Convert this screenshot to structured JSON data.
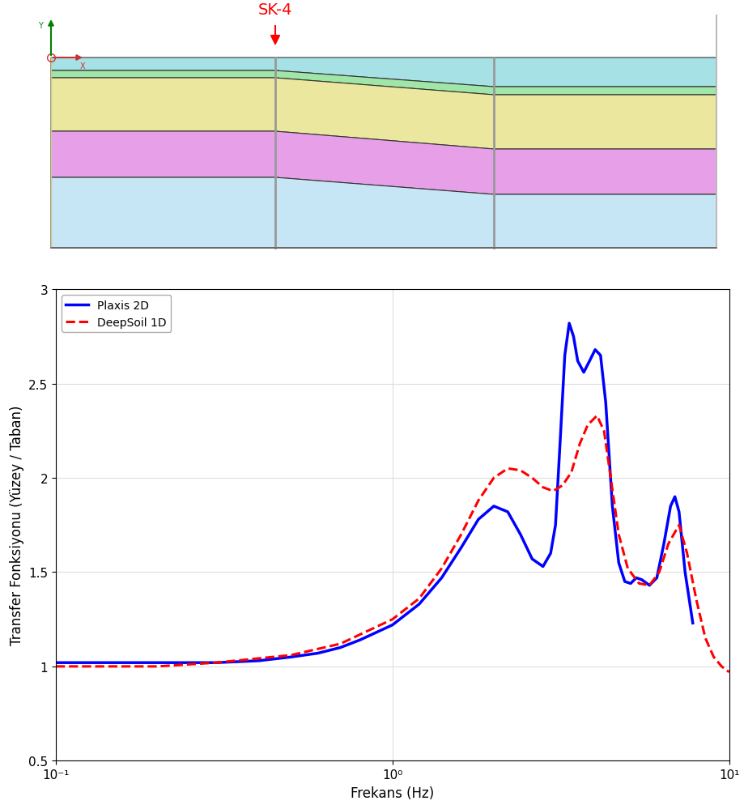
{
  "chart_data": {
    "type": "line",
    "x_label": "Frekans (Hz)",
    "y_label": "Transfer Fonksiyonu (Yüzey / Taban)",
    "log": "x",
    "grid": true,
    "legend": "upper left",
    "xlim": [
      0.1,
      10
    ],
    "xticks": [
      {
        "value": 0.1,
        "label": "10⁻¹"
      },
      {
        "value": 1,
        "label": "10⁰"
      },
      {
        "value": 10,
        "label": "10¹"
      }
    ],
    "ylim": [
      0.5,
      3
    ],
    "yticks": [
      0.5,
      1,
      1.5,
      2,
      2.5,
      3
    ],
    "series": [
      {
        "name": "Plaxis 2D",
        "color": "#0000ff",
        "line_style": "solid",
        "x": [
          0.1,
          0.2,
          0.3,
          0.4,
          0.5,
          0.6,
          0.7,
          0.8,
          1.0,
          1.2,
          1.4,
          1.6,
          1.8,
          2.0,
          2.2,
          2.4,
          2.6,
          2.8,
          2.95,
          3.05,
          3.15,
          3.25,
          3.35,
          3.45,
          3.55,
          3.7,
          3.85,
          4.0,
          4.15,
          4.3,
          4.5,
          4.7,
          4.9,
          5.1,
          5.3,
          5.5,
          5.8,
          6.1,
          6.4,
          6.7,
          6.9,
          7.1,
          7.4,
          7.8
        ],
        "values": [
          1.02,
          1.02,
          1.02,
          1.03,
          1.05,
          1.07,
          1.1,
          1.14,
          1.22,
          1.33,
          1.47,
          1.63,
          1.78,
          1.85,
          1.82,
          1.7,
          1.57,
          1.53,
          1.6,
          1.75,
          2.2,
          2.65,
          2.82,
          2.75,
          2.62,
          2.56,
          2.62,
          2.68,
          2.65,
          2.4,
          1.85,
          1.55,
          1.45,
          1.44,
          1.47,
          1.46,
          1.43,
          1.47,
          1.65,
          1.85,
          1.9,
          1.82,
          1.5,
          1.23
        ]
      },
      {
        "name": "DeepSoil 1D",
        "color": "#ff0000",
        "line_style": "dashed",
        "x": [
          0.1,
          0.2,
          0.3,
          0.5,
          0.7,
          1.0,
          1.2,
          1.4,
          1.6,
          1.8,
          2.0,
          2.2,
          2.4,
          2.6,
          2.8,
          3.0,
          3.2,
          3.4,
          3.6,
          3.8,
          4.05,
          4.25,
          4.45,
          4.7,
          5.0,
          5.4,
          5.8,
          6.2,
          6.6,
          7.1,
          7.5,
          8.0,
          8.5,
          9.0,
          9.5,
          10
        ],
        "values": [
          1.0,
          1.0,
          1.02,
          1.06,
          1.12,
          1.25,
          1.36,
          1.52,
          1.7,
          1.88,
          2.0,
          2.05,
          2.04,
          2.0,
          1.95,
          1.93,
          1.96,
          2.03,
          2.18,
          2.28,
          2.33,
          2.25,
          2.0,
          1.7,
          1.52,
          1.44,
          1.43,
          1.5,
          1.65,
          1.75,
          1.6,
          1.35,
          1.15,
          1.05,
          1.0,
          0.97
        ]
      }
    ]
  },
  "diagram": {
    "marker_label": "SK-4",
    "axis_labels": {
      "x": "X",
      "y": "Y"
    }
  }
}
